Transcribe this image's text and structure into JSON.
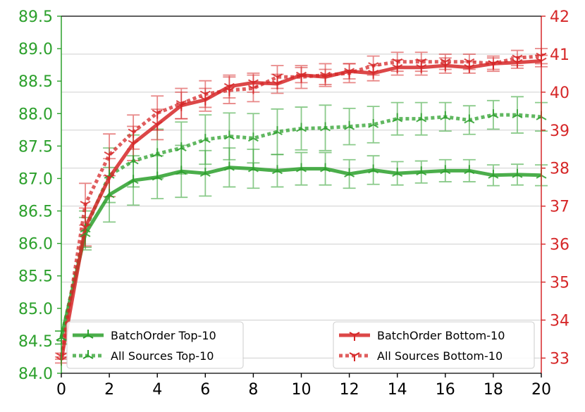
{
  "chart_data": {
    "type": "line",
    "title": "",
    "xlabel": "",
    "ylabel_left": "",
    "ylabel_right": "",
    "x": [
      0,
      1,
      2,
      3,
      4,
      5,
      6,
      7,
      8,
      9,
      10,
      11,
      12,
      13,
      14,
      15,
      16,
      17,
      18,
      19,
      20
    ],
    "xlim": [
      0,
      20
    ],
    "xticks": [
      "0",
      "2",
      "4",
      "6",
      "8",
      "10",
      "12",
      "14",
      "16",
      "18",
      "20"
    ],
    "ylim_left": [
      84.0,
      89.5
    ],
    "yticks_left": [
      "84.0",
      "84.5",
      "85.0",
      "85.5",
      "86.0",
      "86.5",
      "87.0",
      "87.5",
      "88.0",
      "88.5",
      "89.0",
      "89.5"
    ],
    "ylim_right": [
      32.6,
      42
    ],
    "yticks_right": [
      "33",
      "34",
      "35",
      "36",
      "37",
      "38",
      "39",
      "40",
      "41",
      "42"
    ],
    "grid": "horizontal",
    "colors": {
      "left_axis": "#2ca02c",
      "right_axis": "#d62728"
    },
    "series": [
      {
        "name": "BatchOrder Top-10",
        "axis": "left",
        "color": "#2ca02c",
        "style": "solid",
        "marker": "tri-up",
        "values": [
          84.55,
          86.15,
          86.75,
          86.97,
          87.02,
          87.11,
          87.08,
          87.17,
          87.15,
          87.12,
          87.15,
          87.15,
          87.07,
          87.13,
          87.08,
          87.1,
          87.12,
          87.12,
          87.05,
          87.06,
          87.05
        ],
        "errors": [
          0.1,
          0.25,
          0.42,
          0.38,
          0.33,
          0.4,
          0.35,
          0.3,
          0.3,
          0.25,
          0.25,
          0.25,
          0.22,
          0.22,
          0.18,
          0.17,
          0.17,
          0.17,
          0.16,
          0.16,
          0.16
        ]
      },
      {
        "name": "All Sources Top-10",
        "axis": "left",
        "color": "#2ca02c",
        "style": "dotted",
        "marker": "tri-up",
        "values": [
          84.55,
          86.22,
          87.05,
          87.27,
          87.38,
          87.47,
          87.6,
          87.65,
          87.62,
          87.72,
          87.77,
          87.78,
          87.8,
          87.83,
          87.92,
          87.92,
          87.95,
          87.9,
          87.98,
          87.98,
          87.95
        ],
        "errors": [
          0.1,
          0.28,
          0.42,
          0.4,
          0.38,
          0.4,
          0.38,
          0.36,
          0.38,
          0.35,
          0.33,
          0.35,
          0.28,
          0.28,
          0.25,
          0.25,
          0.22,
          0.22,
          0.22,
          0.28,
          0.22
        ]
      },
      {
        "name": "BatchOrder Bottom-10",
        "axis": "right",
        "color": "#d62728",
        "style": "solid",
        "marker": "tri-down",
        "values": [
          32.95,
          36.45,
          37.75,
          38.65,
          39.15,
          39.65,
          39.8,
          40.15,
          40.25,
          40.22,
          40.45,
          40.4,
          40.55,
          40.5,
          40.65,
          40.65,
          40.7,
          40.65,
          40.75,
          40.78,
          40.82
        ],
        "errors": [
          0.08,
          0.5,
          0.5,
          0.45,
          0.4,
          0.35,
          0.3,
          0.3,
          0.25,
          0.25,
          0.2,
          0.2,
          0.2,
          0.2,
          0.2,
          0.2,
          0.2,
          0.15,
          0.15,
          0.15,
          0.15
        ]
      },
      {
        "name": "All Sources Bottom-10",
        "axis": "right",
        "color": "#d62728",
        "style": "dotted",
        "marker": "tri-down",
        "values": [
          33.05,
          37.05,
          38.35,
          38.95,
          39.45,
          39.7,
          39.95,
          40.05,
          40.1,
          40.4,
          40.4,
          40.45,
          40.5,
          40.7,
          40.8,
          40.8,
          40.8,
          40.8,
          40.75,
          40.9,
          40.95
        ],
        "errors": [
          0.08,
          0.55,
          0.55,
          0.45,
          0.45,
          0.4,
          0.35,
          0.35,
          0.35,
          0.3,
          0.3,
          0.3,
          0.25,
          0.25,
          0.25,
          0.25,
          0.2,
          0.2,
          0.2,
          0.2,
          0.2
        ]
      }
    ],
    "legends": [
      {
        "placement": "bottom-left",
        "entries": [
          "BatchOrder Top-10",
          "All Sources Top-10"
        ]
      },
      {
        "placement": "bottom-right",
        "entries": [
          "BatchOrder Bottom-10",
          "All Sources Bottom-10"
        ]
      }
    ]
  }
}
